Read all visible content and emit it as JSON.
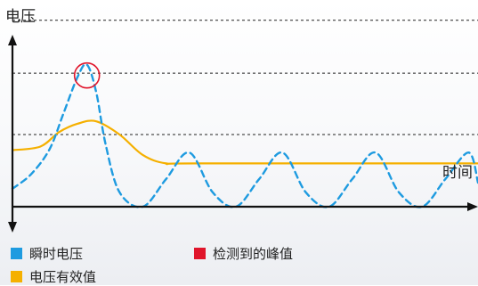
{
  "chart_data": {
    "type": "line",
    "ylabel": "电压",
    "xlabel": "时间",
    "colors": {
      "instantaneous": "#1e9be0",
      "effective": "#f5b000",
      "peak_marker": "#e0152b",
      "axis": "#111111",
      "reference_lines": "#222222"
    },
    "series": [
      {
        "name": "瞬时电压",
        "style": "dashed",
        "color": "#1e9be0",
        "shape": "single spike peaking at t≈0.16, then damped oscillation about the baseline",
        "x": [
          0.0,
          0.04,
          0.08,
          0.11,
          0.14,
          0.16,
          0.18,
          0.2,
          0.23,
          0.28,
          0.33,
          0.38,
          0.43,
          0.48,
          0.53,
          0.58,
          0.63,
          0.68,
          0.73,
          0.78,
          0.83,
          0.88,
          0.93,
          0.98,
          1.0
        ],
        "y": [
          0.15,
          0.27,
          0.48,
          0.78,
          1.08,
          1.18,
          0.95,
          0.52,
          0.12,
          0.0,
          0.23,
          0.45,
          0.12,
          0.0,
          0.23,
          0.45,
          0.12,
          0.0,
          0.23,
          0.45,
          0.12,
          0.0,
          0.23,
          0.45,
          0.2
        ]
      },
      {
        "name": "电压有效值",
        "style": "solid",
        "color": "#f5b000",
        "shape": "low start, rises to a hump peaking at t≈0.18, then settles to a flat level",
        "x": [
          0.0,
          0.06,
          0.1,
          0.14,
          0.18,
          0.23,
          0.28,
          0.33,
          0.4,
          1.0
        ],
        "y": [
          0.47,
          0.5,
          0.62,
          0.69,
          0.71,
          0.6,
          0.43,
          0.36,
          0.36,
          0.36
        ]
      }
    ],
    "reference_lines_y": [
      0.6,
      1.11,
      1.55
    ],
    "reference_line_style": "dashed",
    "peak_marker": {
      "label": "检测到的峰值",
      "series": "瞬时电压",
      "x": 0.16,
      "y": 1.18
    },
    "legend": [
      {
        "label": "瞬时电压",
        "color": "#1e9be0"
      },
      {
        "label": "检测到的峰值",
        "color": "#e0152b"
      },
      {
        "label": "电压有效值",
        "color": "#f5b000"
      }
    ],
    "legend_placement": "bottom"
  }
}
